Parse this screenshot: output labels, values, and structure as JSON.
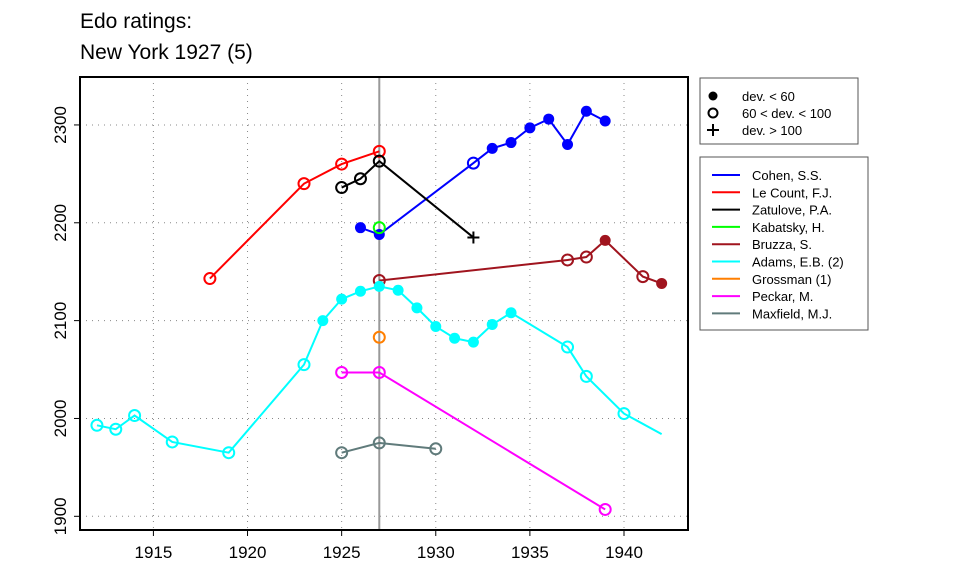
{
  "chart_data": {
    "type": "line",
    "title": [
      "Edo ratings:",
      "New York 1927 (5)"
    ],
    "xlabel": "",
    "ylabel": "",
    "xlim": [
      1911.1,
      1943.4
    ],
    "ylim": [
      1886,
      2349
    ],
    "x_ticks": [
      1915,
      1920,
      1925,
      1930,
      1935,
      1940
    ],
    "y_ticks": [
      1900,
      2000,
      2100,
      2200,
      2300
    ],
    "grid": true,
    "reference_line_x": 1927,
    "marker_legend": {
      "placement": "top-right-outside",
      "entries": [
        {
          "marker": "filled",
          "label": "dev. < 60"
        },
        {
          "marker": "open",
          "label": "60 < dev. < 100"
        },
        {
          "marker": "cross",
          "label": "dev. > 100"
        }
      ]
    },
    "series_legend_placement": "right-outside",
    "series": [
      {
        "name": "Cohen, S.S.",
        "color": "#0000ff",
        "points": [
          [
            1926,
            2195,
            "f"
          ],
          [
            1927,
            2188,
            "f"
          ],
          [
            1932,
            2261,
            "o"
          ],
          [
            1933,
            2276,
            "f"
          ],
          [
            1934,
            2282,
            "f"
          ],
          [
            1935,
            2297,
            "f"
          ],
          [
            1936,
            2306,
            "f"
          ],
          [
            1937,
            2280,
            "f"
          ],
          [
            1938,
            2314,
            "f"
          ],
          [
            1939,
            2304,
            "f"
          ]
        ]
      },
      {
        "name": "Le Count, F.J.",
        "color": "#ff0000",
        "points": [
          [
            1918,
            2143,
            "o"
          ],
          [
            1923,
            2240,
            "o"
          ],
          [
            1925,
            2260,
            "o"
          ],
          [
            1927,
            2273,
            "o"
          ]
        ]
      },
      {
        "name": "Zatulove, P.A.",
        "color": "#000000",
        "points": [
          [
            1925,
            2236,
            "o"
          ],
          [
            1926,
            2245,
            "o"
          ],
          [
            1927,
            2263,
            "o"
          ],
          [
            1932,
            2185,
            "+"
          ]
        ]
      },
      {
        "name": "Kabatsky, H.",
        "color": "#00ff00",
        "points": [
          [
            1927,
            2195,
            "o"
          ]
        ]
      },
      {
        "name": "Bruzza, S.",
        "color": "#a0141e",
        "points": [
          [
            1927,
            2141,
            "o"
          ],
          [
            1937,
            2162,
            "o"
          ],
          [
            1938,
            2165,
            "o"
          ],
          [
            1939,
            2182,
            "f"
          ],
          [
            1941,
            2145,
            "o"
          ],
          [
            1942,
            2138,
            "f"
          ]
        ]
      },
      {
        "name": "Adams, E.B. (2)",
        "color": "#00ffff",
        "points": [
          [
            1912,
            1993,
            "o"
          ],
          [
            1913,
            1989,
            "o"
          ],
          [
            1914,
            2003,
            "o"
          ],
          [
            1916,
            1976,
            "o"
          ],
          [
            1919,
            1965,
            "o"
          ],
          [
            1923,
            2055,
            "o"
          ],
          [
            1924,
            2100,
            "f"
          ],
          [
            1925,
            2122,
            "f"
          ],
          [
            1926,
            2130,
            "f"
          ],
          [
            1927,
            2135,
            "f"
          ],
          [
            1928,
            2131,
            "f"
          ],
          [
            1929,
            2113,
            "f"
          ],
          [
            1930,
            2094,
            "f"
          ],
          [
            1931,
            2082,
            "f"
          ],
          [
            1932,
            2078,
            "f"
          ],
          [
            1933,
            2096,
            "f"
          ],
          [
            1934,
            2108,
            "f"
          ],
          [
            1937,
            2073,
            "o"
          ],
          [
            1938,
            2043,
            "o"
          ],
          [
            1940,
            2005,
            "o"
          ],
          [
            1942,
            1984,
            "n"
          ]
        ]
      },
      {
        "name": "Grossman (1)",
        "color": "#ff7f00",
        "points": [
          [
            1927,
            2083,
            "o"
          ]
        ]
      },
      {
        "name": "Peckar, M.",
        "color": "#ff00ff",
        "points": [
          [
            1925,
            2047,
            "o"
          ],
          [
            1927,
            2047,
            "o"
          ],
          [
            1939,
            1907,
            "o"
          ]
        ]
      },
      {
        "name": "Maxfield, M.J.",
        "color": "#607b7b",
        "points": [
          [
            1925,
            1965,
            "o"
          ],
          [
            1927,
            1975,
            "o"
          ],
          [
            1930,
            1969,
            "o"
          ]
        ]
      }
    ]
  }
}
